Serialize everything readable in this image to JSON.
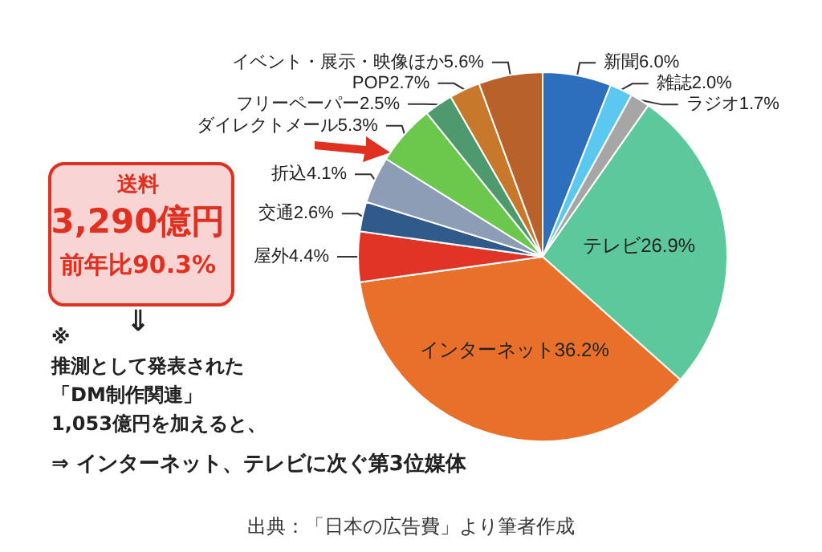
{
  "chart_data": {
    "type": "pie",
    "categories": [
      "新聞",
      "雑誌",
      "ラジオ",
      "テレビ",
      "インターネット",
      "屋外",
      "交通",
      "折込",
      "ダイレクトメール",
      "フリーペーパー",
      "POP",
      "イベント・展示・映像ほか"
    ],
    "values": [
      6.0,
      2.0,
      1.7,
      26.9,
      36.2,
      4.4,
      2.6,
      4.1,
      5.3,
      2.5,
      2.7,
      5.6
    ],
    "value_labels": [
      "6.0%",
      "2.0%",
      "1.7%",
      "26.9%",
      "36.2%",
      "4.4%",
      "2.6%",
      "4.1%",
      "5.3%",
      "2.5%",
      "2.7%",
      "5.6%"
    ],
    "colors": [
      "#2e6fbd",
      "#5bc8f0",
      "#a6a6a6",
      "#5cc89c",
      "#e8702a",
      "#e03426",
      "#2f5a8a",
      "#8d9db5",
      "#6cc84c",
      "#4e9a6e",
      "#c8782a",
      "#b8612a"
    ],
    "annotations": [
      "送料",
      "3,290億円",
      "前年比90.3%",
      "⇓",
      "※",
      "推測として発表された",
      "「DM制作関連」",
      "1,053億円を加えると、",
      "⇒  インターネット、テレビに次ぐ第3位媒体",
      "出典：「日本の広告費」より筆者作成"
    ],
    "legend": false
  }
}
